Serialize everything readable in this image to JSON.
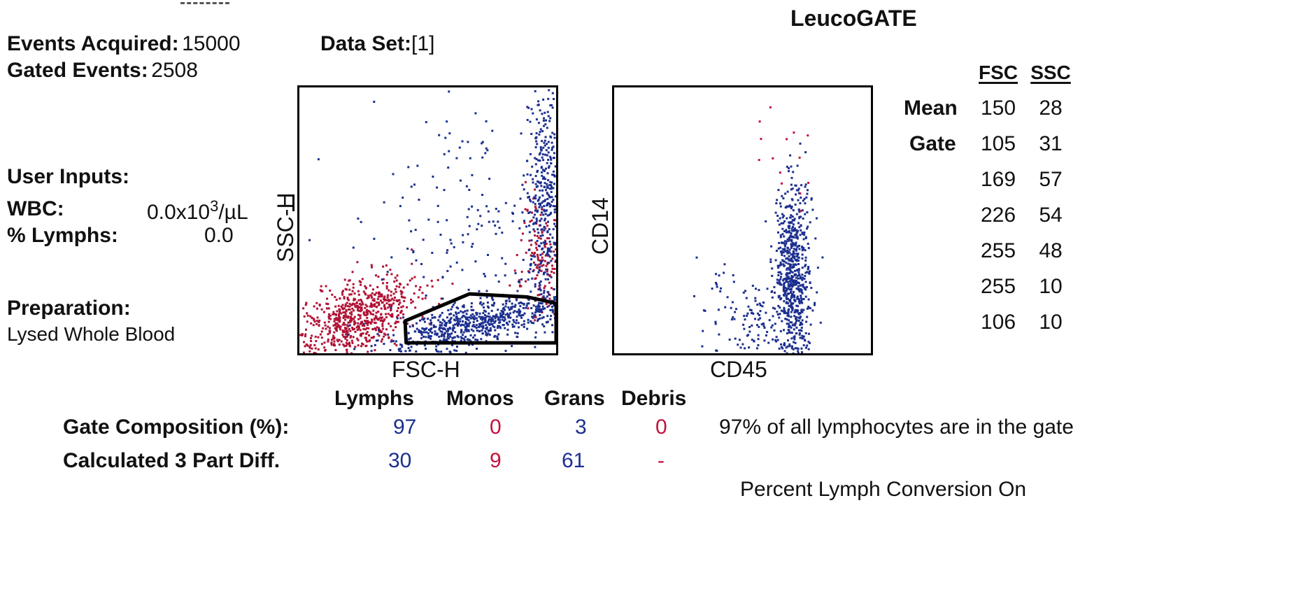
{
  "header": {
    "app_title": "LeucoGATE",
    "events_acquired_label": "Events Acquired:",
    "events_acquired_value": "15000",
    "data_set_label": "Data Set:",
    "data_set_value": "[1]",
    "gated_events_label": "Gated Events:",
    "gated_events_value": "2508"
  },
  "user_inputs": {
    "title": "User Inputs:",
    "wbc_label": "WBC:",
    "wbc_value": "0.0x10",
    "wbc_exp": "3",
    "wbc_unit": "/µL",
    "lymphs_label": "% Lymphs:",
    "lymphs_value": "0.0"
  },
  "preparation": {
    "title": "Preparation:",
    "value": "Lysed Whole Blood"
  },
  "gate_table": {
    "headers": [
      "FSC",
      "SSC"
    ],
    "rows": [
      {
        "label": "Mean",
        "fsc": "150",
        "ssc": "28"
      },
      {
        "label": "Gate",
        "fsc": "105",
        "ssc": "31"
      },
      {
        "label": "",
        "fsc": "169",
        "ssc": "57"
      },
      {
        "label": "",
        "fsc": "226",
        "ssc": "54"
      },
      {
        "label": "",
        "fsc": "255",
        "ssc": "48"
      },
      {
        "label": "",
        "fsc": "255",
        "ssc": "10"
      },
      {
        "label": "",
        "fsc": "106",
        "ssc": "10"
      }
    ]
  },
  "composition": {
    "headers": [
      "Lymphs",
      "Monos",
      "Grans",
      "Debris"
    ],
    "gate_label": "Gate Composition (%):",
    "gate_values": [
      "97",
      "0",
      "3",
      "0"
    ],
    "diff_label": "Calculated 3 Part Diff.",
    "diff_values": [
      "30",
      "9",
      "61",
      "-"
    ],
    "note": "97% of all lymphocytes are in the gate",
    "footer": "Percent Lymph Conversion On"
  },
  "colors": {
    "blue_population": "#1c2f8f",
    "red_population": "#b01235"
  },
  "chart_data": [
    {
      "type": "scatter",
      "xlabel": "FSC-H",
      "ylabel": "SSC-H",
      "xlim": [
        0,
        255
      ],
      "ylim": [
        0,
        255
      ],
      "gate_polygon": [
        [
          105,
          31
        ],
        [
          169,
          57
        ],
        [
          226,
          54
        ],
        [
          255,
          48
        ],
        [
          255,
          10
        ],
        [
          106,
          10
        ]
      ],
      "series": [
        {
          "color": "#b01235",
          "clusters": [
            {
              "center": [
                55,
                35
              ],
              "spread": [
                30,
                18
              ],
              "count": 700,
              "tilt": 0.35
            },
            {
              "center": [
                240,
                90
              ],
              "spread": [
                12,
                30
              ],
              "count": 160,
              "tilt": 0
            }
          ]
        },
        {
          "color": "#1c2f8f",
          "clusters": [
            {
              "center": [
                175,
                30
              ],
              "spread": [
                45,
                10
              ],
              "count": 650,
              "tilt": 0.2
            },
            {
              "center": [
                243,
                150
              ],
              "spread": [
                10,
                55
              ],
              "count": 420,
              "tilt": 0
            },
            {
              "center": [
                170,
                130
              ],
              "spread": [
                55,
                55
              ],
              "count": 170,
              "tilt": 0
            }
          ]
        }
      ]
    },
    {
      "type": "scatter",
      "xlabel": "CD45",
      "ylabel": "CD14",
      "xlim": [
        0,
        255
      ],
      "ylim": [
        0,
        255
      ],
      "series": [
        {
          "color": "#1c2f8f",
          "clusters": [
            {
              "center": [
                177,
                75
              ],
              "spread": [
                9,
                45
              ],
              "count": 700,
              "tilt": 0
            },
            {
              "center": [
                140,
                35
              ],
              "spread": [
                18,
                20
              ],
              "count": 100,
              "tilt": 0
            },
            {
              "center": [
                100,
                45
              ],
              "spread": [
                10,
                25
              ],
              "count": 25,
              "tilt": 0
            }
          ]
        },
        {
          "color": "#c4123c",
          "clusters": [
            {
              "center": [
                165,
                185
              ],
              "spread": [
                12,
                30
              ],
              "count": 14,
              "tilt": 0
            }
          ]
        }
      ]
    }
  ]
}
